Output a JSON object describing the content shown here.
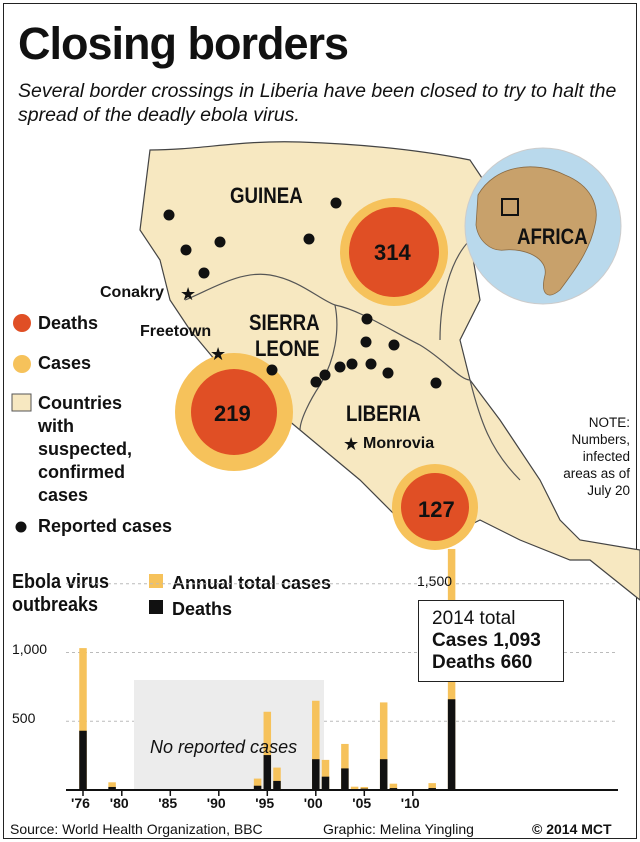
{
  "header": {
    "title": "Closing borders",
    "subtitle": "Several border crossings in Liberia have been closed to try to halt the spread of the deadly ebola virus."
  },
  "map": {
    "countries": [
      "GUINEA",
      "SIERRA LEONE",
      "LIBERIA"
    ],
    "sierra_line1": "SIERRA",
    "sierra_line2": "LEONE",
    "cities": [
      "Conakry",
      "Freetown",
      "Monrovia"
    ],
    "globe_label": "AFRICA",
    "circles": [
      {
        "country": "Guinea",
        "value": "314"
      },
      {
        "country": "Sierra Leone",
        "value": "219"
      },
      {
        "country": "Liberia",
        "value": "127"
      }
    ],
    "legend": {
      "deaths": "Deaths",
      "cases": "Cases",
      "countries": [
        "Countries",
        "with",
        "suspected,",
        "confirmed",
        "cases"
      ],
      "reported": "Reported cases"
    },
    "note": [
      "NOTE:",
      "Numbers,",
      "infected",
      "areas as of",
      "July 20"
    ],
    "colors": {
      "land": "#f7e8c1",
      "deaths": "#e04f25",
      "cases": "#f6c25b",
      "globe_sea": "#b9d9ec"
    }
  },
  "chart_data": {
    "type": "bar",
    "title_line1": "Ebola virus",
    "title_line2": "outbreaks",
    "legend_cases": "Annual total cases",
    "legend_deaths": "Deaths",
    "x_tick_labels": [
      "'76",
      "'80",
      "'85",
      "'90",
      "'95",
      "'00",
      "'05",
      "'10"
    ],
    "y_tick_labels": [
      "500",
      "1,000",
      "1,500"
    ],
    "ylim": [
      0,
      1700
    ],
    "annotation_no_cases": "No reported cases",
    "total_box": {
      "line1": "2014 total",
      "line2": "Cases 1,093",
      "line3": "Deaths 660"
    },
    "series": [
      {
        "name": "Annual total cases",
        "color": "#f6c25b",
        "x": [
          1976,
          1977,
          1979,
          1994,
          1995,
          1996,
          2000,
          2001,
          2003,
          2004,
          2005,
          2007,
          2008,
          2012,
          2014
        ],
        "values": [
          602,
          1,
          34,
          52,
          315,
          97,
          425,
          122,
          178,
          17,
          12,
          413,
          32,
          36,
          1093
        ]
      },
      {
        "name": "Deaths",
        "color": "#111111",
        "x": [
          1976,
          1977,
          1979,
          1994,
          1995,
          1996,
          2000,
          2001,
          2003,
          2004,
          2005,
          2007,
          2008,
          2012,
          2014
        ],
        "values": [
          431,
          1,
          22,
          31,
          254,
          66,
          224,
          97,
          157,
          7,
          10,
          224,
          14,
          14,
          660
        ]
      }
    ],
    "plotted_totals": [
      1032,
      1,
      56,
      83,
      569,
      163,
      649,
      219,
      335,
      24,
      22,
      637,
      46,
      50,
      1753
    ]
  },
  "footer": {
    "source": "Source: World Health Organization, BBC",
    "graphic": "Graphic: Melina Yingling",
    "copyright": "© 2014 MCT"
  }
}
